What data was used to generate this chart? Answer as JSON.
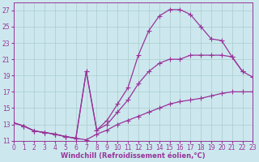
{
  "background_color": "#cce8ee",
  "grid_color": "#aacccc",
  "line_color": "#993399",
  "marker": "+",
  "markersize": 4,
  "linewidth": 0.9,
  "xlabel": "Windchill (Refroidissement éolien,°C)",
  "xlabel_fontsize": 6,
  "tick_fontsize": 5.5,
  "ylim": [
    11,
    28
  ],
  "xlim": [
    0,
    23
  ],
  "yticks": [
    11,
    13,
    15,
    17,
    19,
    21,
    23,
    25,
    27
  ],
  "xticks": [
    0,
    1,
    2,
    3,
    4,
    5,
    6,
    7,
    8,
    9,
    10,
    11,
    12,
    13,
    14,
    15,
    16,
    17,
    18,
    19,
    20,
    21,
    22,
    23
  ],
  "series": [
    {
      "x": [
        0,
        1,
        2,
        3,
        4,
        5,
        6,
        7,
        8,
        9,
        10,
        11,
        12,
        13,
        14,
        15,
        16,
        17,
        18,
        19,
        20,
        21,
        22,
        23
      ],
      "y": [
        13.2,
        12.8,
        12.2,
        12.0,
        11.8,
        11.5,
        11.3,
        11.1,
        11.8,
        12.3,
        13.0,
        13.5,
        14.0,
        14.5,
        15.0,
        15.5,
        15.8,
        16.0,
        16.2,
        16.5,
        16.8,
        17.0,
        17.0,
        17.0
      ]
    },
    {
      "x": [
        0,
        1,
        2,
        3,
        4,
        5,
        6,
        7,
        8,
        9,
        10,
        11,
        12,
        13,
        14,
        15,
        16,
        17,
        18,
        19,
        20,
        21,
        22,
        23
      ],
      "y": [
        13.2,
        12.8,
        12.2,
        12.0,
        11.8,
        11.5,
        11.3,
        19.5,
        12.3,
        13.0,
        14.5,
        16.0,
        18.0,
        19.5,
        20.5,
        21.0,
        21.0,
        21.5,
        21.5,
        21.5,
        21.5,
        21.3,
        19.5,
        18.8
      ]
    },
    {
      "x": [
        0,
        1,
        2,
        3,
        4,
        5,
        6,
        7,
        8,
        9,
        10,
        11,
        12,
        13,
        14,
        15,
        16,
        17,
        18,
        19,
        20,
        21,
        22,
        23
      ],
      "y": [
        13.2,
        12.8,
        12.2,
        12.0,
        11.8,
        11.5,
        11.3,
        19.5,
        12.3,
        13.5,
        15.5,
        17.5,
        21.5,
        24.5,
        26.3,
        27.1,
        27.1,
        26.5,
        25.0,
        23.5,
        23.3,
        21.3,
        19.5,
        null
      ]
    }
  ]
}
